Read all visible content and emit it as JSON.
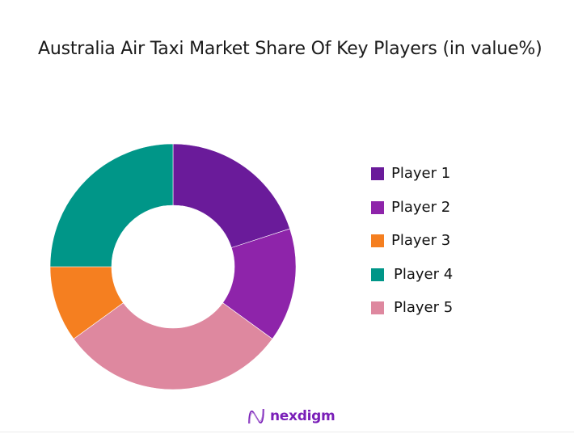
{
  "title": "Australia Air Taxi Market Share Of Key Players (in value%)",
  "brand": {
    "name": "nexdigm"
  },
  "chart_data": {
    "type": "pie",
    "subtype": "donut",
    "title": "Australia Air Taxi Market Share Of Key Players (in value%)",
    "unit": "%",
    "legend_position": "right",
    "categories": [
      "Player 1",
      "Player 2",
      "Player 3",
      "Player 4",
      "Player 5"
    ],
    "values": [
      20,
      15,
      10,
      25,
      30
    ],
    "colors": [
      "#6a1b9a",
      "#8e24aa",
      "#f57f20",
      "#009688",
      "#de889f"
    ],
    "draw_order_clockwise_from_top": [
      "Player 1",
      "Player 2",
      "Player 5",
      "Player 3",
      "Player 4"
    ]
  },
  "legend": {
    "items": [
      {
        "label": "Player 1",
        "color": "#6a1b9a"
      },
      {
        "label": "Player 2",
        "color": "#8e24aa"
      },
      {
        "label": "Player 3",
        "color": "#f57f20"
      },
      {
        "label": "Player 4",
        "color": "#009688"
      },
      {
        "label": "Player 5",
        "color": "#de889f"
      }
    ]
  }
}
